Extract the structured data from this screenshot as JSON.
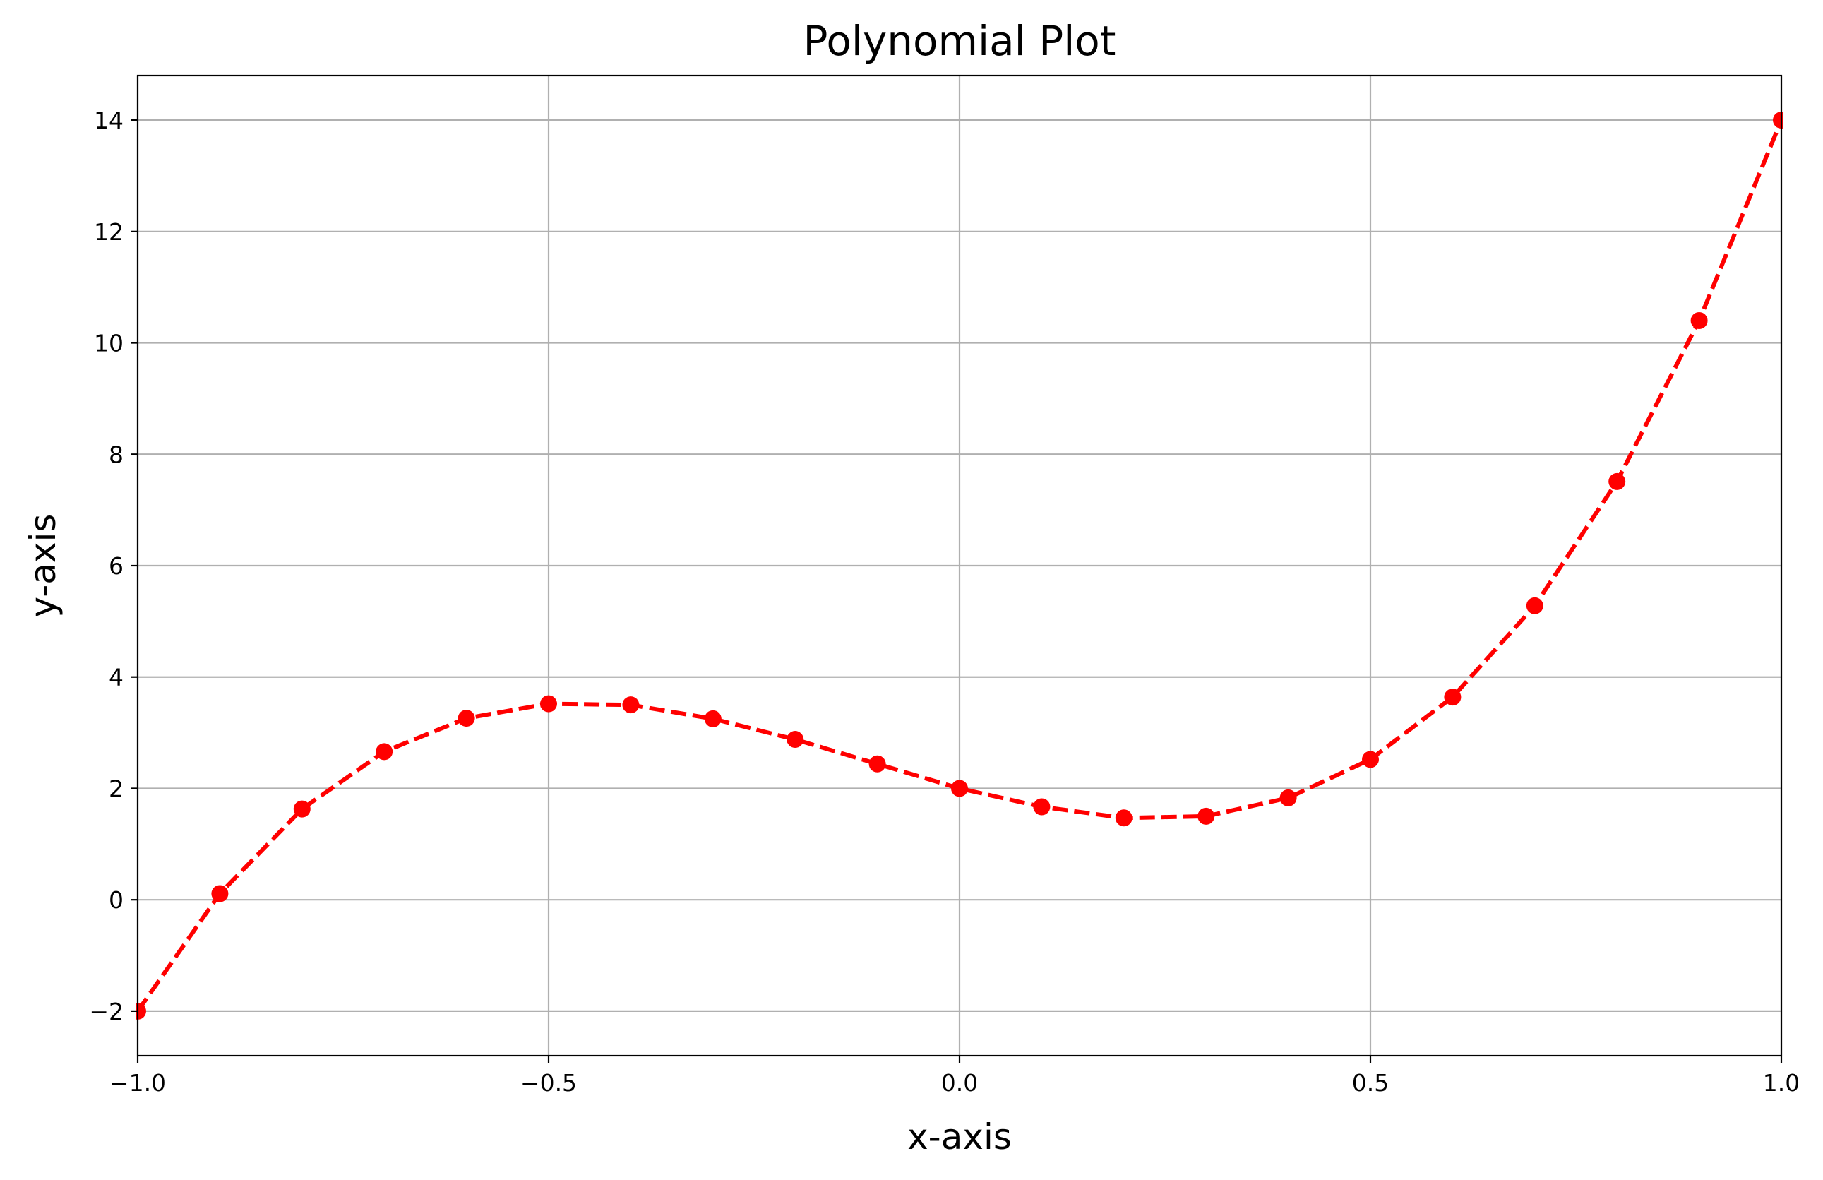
{
  "chart_data": {
    "type": "line",
    "title": "Polynomial Plot",
    "xlabel": "x-axis",
    "ylabel": "y-axis",
    "xlim": [
      -1.0,
      1.0
    ],
    "ylim": [
      -2.8,
      14.8
    ],
    "grid": true,
    "legend": "none",
    "x_ticks": [
      "−1.0",
      "−0.5",
      "0.0",
      "0.5",
      "1.0"
    ],
    "x_tick_values": [
      -1.0,
      -0.5,
      0.0,
      0.5,
      1.0
    ],
    "y_ticks": [
      "−2",
      "0",
      "2",
      "4",
      "6",
      "8",
      "10",
      "12",
      "14"
    ],
    "y_tick_values": [
      -2,
      0,
      2,
      4,
      6,
      8,
      10,
      12,
      14
    ],
    "series": [
      {
        "color": "#ff0000",
        "line_style": "dashed",
        "marker": "circle",
        "x": [
          -1.0,
          -0.9,
          -0.8,
          -0.7,
          -0.6,
          -0.5,
          -0.4,
          -0.3,
          -0.2,
          -0.1,
          0.0,
          0.1,
          0.2,
          0.3,
          0.4,
          0.5,
          0.6,
          0.7,
          0.8,
          0.9,
          1.0
        ],
        "y": [
          -2.0,
          0.11,
          1.63,
          2.66,
          3.26,
          3.52,
          3.5,
          3.25,
          2.88,
          2.44,
          2.0,
          1.67,
          1.47,
          1.5,
          1.83,
          2.52,
          3.64,
          5.28,
          7.51,
          10.4,
          14.0
        ]
      }
    ]
  }
}
